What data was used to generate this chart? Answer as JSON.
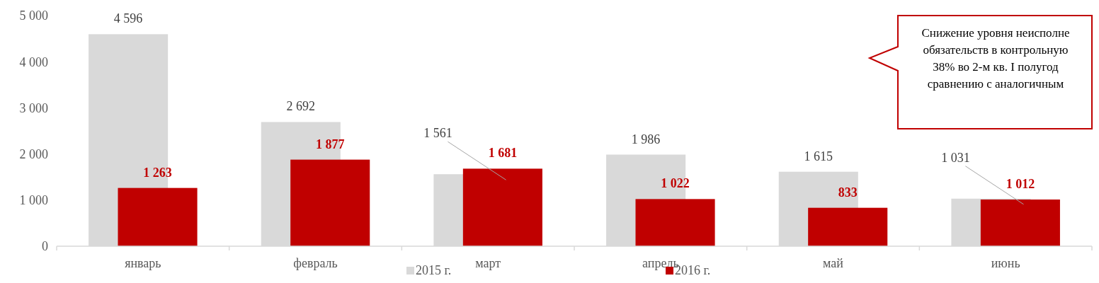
{
  "chart_data": {
    "type": "bar",
    "categories": [
      "январь",
      "февраль",
      "март",
      "апрель",
      "май",
      "июнь"
    ],
    "series": [
      {
        "name": "2015 г.",
        "color": "#d9d9d9",
        "values": [
          4596,
          2692,
          1561,
          1986,
          1615,
          1031
        ],
        "value_labels": [
          "4 596",
          "2 692",
          "1 561",
          "1 986",
          "1 615",
          "1 031"
        ]
      },
      {
        "name": "2016 г.",
        "color": "#c00000",
        "values": [
          1263,
          1877,
          1681,
          1022,
          833,
          1012
        ],
        "value_labels": [
          "1 263",
          "1 877",
          "1 681",
          "1 022",
          "833",
          "1 012"
        ]
      }
    ],
    "ylim": [
      0,
      5000
    ],
    "yticks": [
      {
        "value": 0,
        "label": "0"
      },
      {
        "value": 1000,
        "label": "1 000"
      },
      {
        "value": 2000,
        "label": "2 000"
      },
      {
        "value": 3000,
        "label": "3 000"
      },
      {
        "value": 4000,
        "label": "4 000"
      },
      {
        "value": 5000,
        "label": "5 000"
      }
    ],
    "grid": false,
    "legend": "bottom",
    "annotations": [
      "Снижение уровня неисполне",
      "обязательств в контрольную",
      "38% во 2-м кв. I полугод",
      "сравнению с аналогичным"
    ]
  }
}
